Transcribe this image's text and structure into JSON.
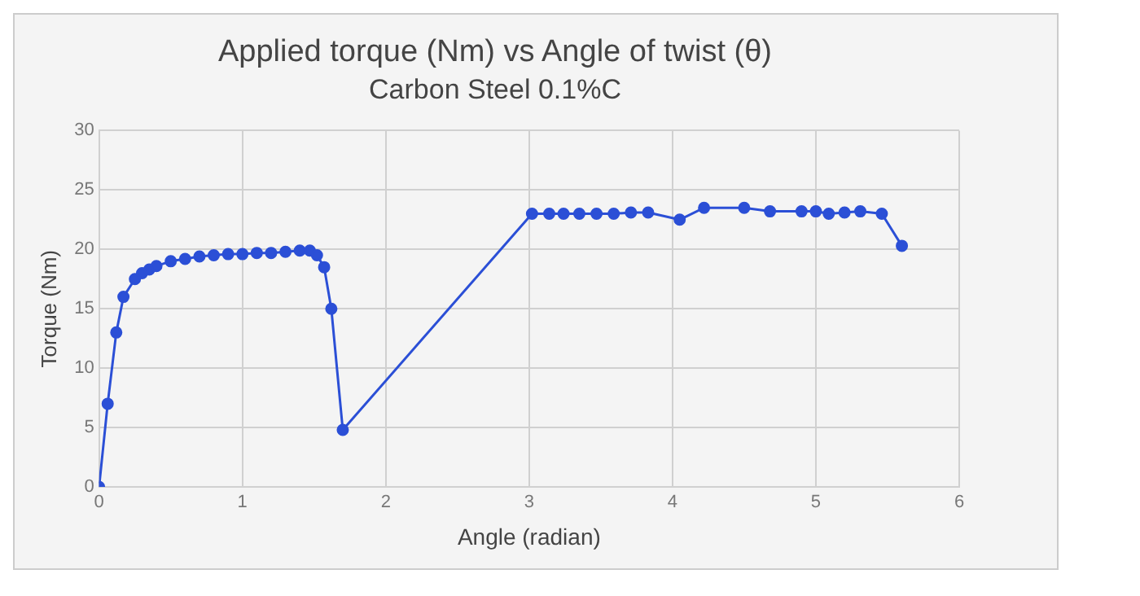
{
  "chart_data": {
    "type": "line",
    "title": "Applied torque (Nm) vs Angle of twist (θ)",
    "subtitle": "Carbon Steel 0.1%C",
    "xlabel": "Angle (radian)",
    "ylabel": "Torque (Nm)",
    "x": [
      0,
      0.06,
      0.12,
      0.17,
      0.25,
      0.3,
      0.35,
      0.4,
      0.5,
      0.6,
      0.7,
      0.8,
      0.9,
      1.0,
      1.1,
      1.2,
      1.3,
      1.4,
      1.47,
      1.52,
      1.57,
      1.62,
      1.7,
      3.02,
      3.14,
      3.24,
      3.35,
      3.47,
      3.59,
      3.71,
      3.83,
      4.05,
      4.22,
      4.5,
      4.68,
      4.9,
      5.0,
      5.09,
      5.2,
      5.31,
      5.46,
      5.6
    ],
    "series": [
      {
        "color": "#2b4fd6",
        "values": [
          0,
          7,
          13,
          16,
          17.5,
          18,
          18.3,
          18.6,
          19,
          19.2,
          19.4,
          19.5,
          19.6,
          19.6,
          19.7,
          19.7,
          19.8,
          19.9,
          19.9,
          19.5,
          18.5,
          15,
          4.8,
          23,
          23,
          23,
          23,
          23,
          23,
          23.1,
          23.1,
          22.5,
          23.5,
          23.5,
          23.2,
          23.2,
          23.2,
          23,
          23.1,
          23.2,
          23,
          20.3
        ]
      }
    ],
    "xlim": [
      0,
      6
    ],
    "xticks": [
      0,
      1,
      2,
      3,
      4,
      5,
      6
    ],
    "ylim": [
      0,
      30
    ],
    "yticks": [
      0,
      5,
      10,
      15,
      20,
      25,
      30
    ],
    "grid": true,
    "legend": false,
    "marker": "circle",
    "line_style": "solid"
  }
}
